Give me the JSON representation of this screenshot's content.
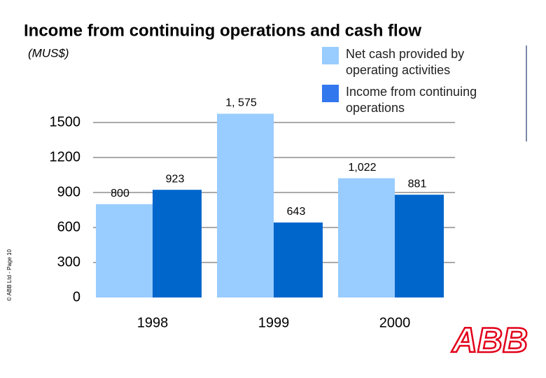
{
  "chart_data": {
    "type": "bar",
    "title": "Income from continuing operations and cash flow",
    "subtitle": "(MUS$)",
    "categories": [
      "1998",
      "1999",
      "2000"
    ],
    "series": [
      {
        "name": "Net cash provided by operating activities",
        "color": "#99ccff",
        "values": [
          800,
          1575,
          1022
        ],
        "value_labels": [
          "800",
          "1, 575",
          "1,022"
        ]
      },
      {
        "name": "Income from continuing operations",
        "color": "#0066cc",
        "values": [
          923,
          643,
          881
        ]
      }
    ],
    "ylim": [
      0,
      1500
    ],
    "yticks": [
      0,
      300,
      600,
      900,
      1200,
      1500
    ],
    "grid": true,
    "footer": "© ABB Ltd - Page 10",
    "logo": "ABB"
  }
}
